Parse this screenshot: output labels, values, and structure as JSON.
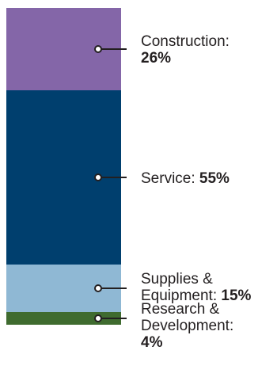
{
  "chart_data": {
    "type": "bar",
    "orientation": "stacked-vertical",
    "unit": "%",
    "series": [
      {
        "name": "Construction",
        "value": 26,
        "color": "#8466a8",
        "label_lines": [
          "Construction:"
        ],
        "value_text": "26%"
      },
      {
        "name": "Service",
        "value": 55,
        "color": "#003f6e",
        "label_lines": [
          "Service:"
        ],
        "value_text": "55%"
      },
      {
        "name": "Supplies & Equipment",
        "value": 15,
        "color": "#8fb8d4",
        "label_lines": [
          "Supplies &",
          "Equipment:"
        ],
        "value_text": "15%"
      },
      {
        "name": "Research & Development",
        "value": 4,
        "color": "#3f6b2f",
        "label_lines": [
          "Research &",
          "Development:"
        ],
        "value_text": "4%"
      }
    ]
  }
}
